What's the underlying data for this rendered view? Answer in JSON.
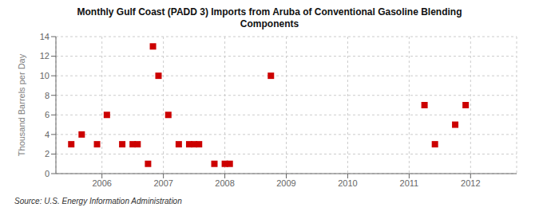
{
  "chart_data": {
    "type": "scatter",
    "title": "Monthly Gulf Coast (PADD 3) Imports from Aruba of Conventional Gasoline Blending\nComponents",
    "y_label": "Thousand Barrels per Day",
    "annotations": [
      "Source: U.S. Energy Information Administration"
    ],
    "x": [
      2005.5,
      2005.67,
      2005.92,
      2006.08,
      2006.33,
      2006.5,
      2006.58,
      2006.75,
      2006.83,
      2006.92,
      2007.08,
      2007.25,
      2007.42,
      2007.5,
      2007.58,
      2007.83,
      2008.0,
      2008.08,
      2008.75,
      2011.25,
      2011.42,
      2011.75,
      2011.92
    ],
    "values": [
      3,
      4,
      3,
      6,
      3,
      3,
      3,
      1,
      13,
      10,
      6,
      3,
      3,
      3,
      3,
      1,
      1,
      1,
      10,
      7,
      3,
      5,
      7
    ],
    "color": "#cc0000",
    "marker": "square",
    "xlim": [
      2005.25,
      2012.75
    ],
    "xticks": [
      2006,
      2007,
      2008,
      2009,
      2010,
      2011,
      2012
    ],
    "ylim": [
      0,
      14
    ],
    "yticks": [
      0,
      2,
      4,
      6,
      8,
      10,
      12,
      14
    ],
    "grid": true
  }
}
